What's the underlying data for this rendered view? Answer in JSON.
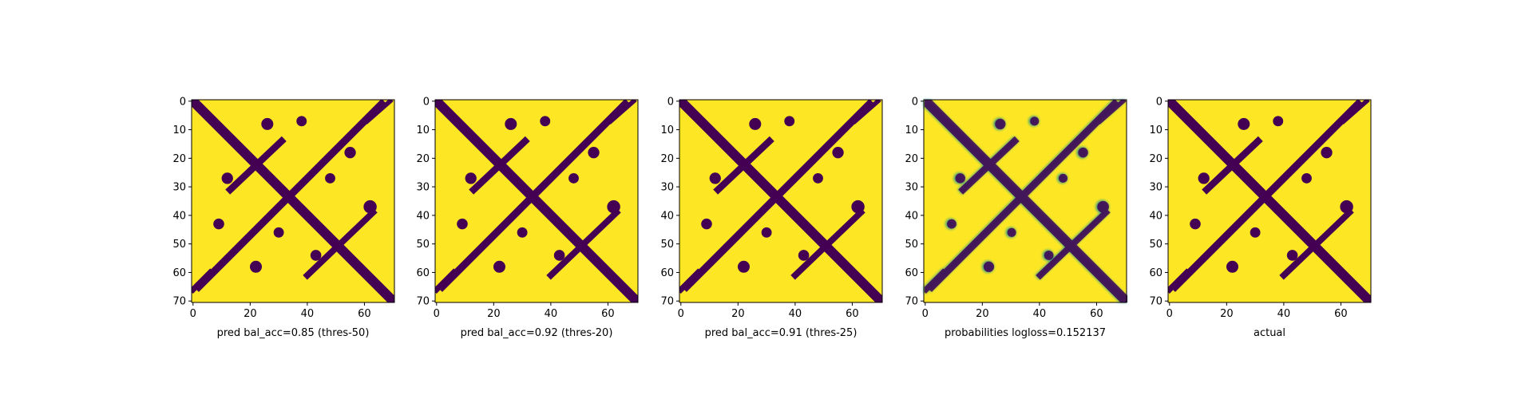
{
  "chart_data": [
    {
      "type": "heatmap",
      "xlabel": "pred bal_acc=0.85 (thres-50)",
      "xlim": [
        -0.5,
        70.5
      ],
      "ylim": [
        70.5,
        -0.5
      ],
      "xticks": [
        0,
        20,
        40,
        60
      ],
      "yticks": [
        0,
        10,
        20,
        30,
        40,
        50,
        60,
        70
      ],
      "colors": [
        "#440154",
        "#fde725"
      ]
    },
    {
      "type": "heatmap",
      "xlabel": "pred bal_acc=0.92 (thres-20)",
      "xlim": [
        -0.5,
        70.5
      ],
      "ylim": [
        70.5,
        -0.5
      ],
      "xticks": [
        0,
        20,
        40,
        60
      ],
      "yticks": [
        0,
        10,
        20,
        30,
        40,
        50,
        60,
        70
      ],
      "colors": [
        "#440154",
        "#fde725"
      ]
    },
    {
      "type": "heatmap",
      "xlabel": "pred bal_acc=0.91 (thres-25)",
      "xlim": [
        -0.5,
        70.5
      ],
      "ylim": [
        70.5,
        -0.5
      ],
      "xticks": [
        0,
        20,
        40,
        60
      ],
      "yticks": [
        0,
        10,
        20,
        30,
        40,
        50,
        60,
        70
      ],
      "colors": [
        "#440154",
        "#fde725"
      ]
    },
    {
      "type": "probability",
      "xlabel": "probabilities logloss=0.152137",
      "xlim": [
        -0.5,
        70.5
      ],
      "ylim": [
        70.5,
        -0.5
      ],
      "xticks": [
        0,
        20,
        40,
        60
      ],
      "yticks": [
        0,
        10,
        20,
        30,
        40,
        50,
        60,
        70
      ],
      "colors": [
        "#440154",
        "#21918c",
        "#fde725"
      ]
    },
    {
      "type": "heatmap",
      "xlabel": "actual",
      "xlim": [
        -0.5,
        70.5
      ],
      "ylim": [
        70.5,
        -0.5
      ],
      "xticks": [
        0,
        20,
        40,
        60
      ],
      "yticks": [
        0,
        10,
        20,
        30,
        40,
        50,
        60,
        70
      ],
      "colors": [
        "#440154",
        "#fde725"
      ]
    }
  ]
}
